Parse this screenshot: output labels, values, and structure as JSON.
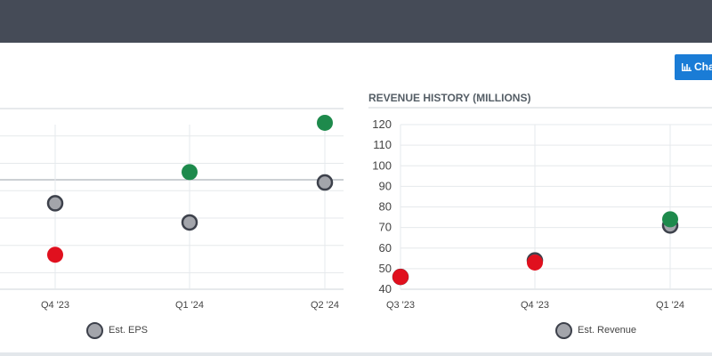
{
  "button": {
    "label": "Cha"
  },
  "charts": {
    "revenue": {
      "title": "REVENUE HISTORY (MILLIONS)"
    }
  },
  "colors": {
    "header_bg": "#454b57",
    "button_bg": "#1a7cd6",
    "beat": "#1e8a4c",
    "miss": "#e0101e",
    "estimate_fill": "#a3a5ab",
    "estimate_stroke": "#3d414b"
  },
  "chart_data": [
    {
      "type": "scatter",
      "title": "",
      "categories": [
        "Q4 '23",
        "Q1 '24",
        "Q2 '24"
      ],
      "series": [
        {
          "name": "Est. EPS",
          "values": [
            2.57,
            2.22,
            2.95
          ]
        },
        {
          "name": "",
          "values": [
            1.63,
            3.14,
            4.04
          ]
        }
      ],
      "point_colors": [
        "miss",
        "beat",
        "beat"
      ],
      "ylim": [
        1.0,
        4.3
      ],
      "grid": true,
      "legend": "bottom"
    },
    {
      "type": "scatter",
      "title": "REVENUE HISTORY (MILLIONS)",
      "categories": [
        "Q3 '23",
        "Q4 '23",
        "Q1 '24"
      ],
      "series": [
        {
          "name": "Est. Revenue",
          "values": [
            46,
            54,
            71
          ]
        },
        {
          "name": "",
          "values": [
            46,
            53,
            74
          ]
        }
      ],
      "point_colors": [
        "miss",
        "miss",
        "beat"
      ],
      "yticks": [
        40,
        50,
        60,
        70,
        80,
        90,
        100,
        110,
        120
      ],
      "ylim": [
        40,
        120
      ],
      "grid": true,
      "legend": "bottom"
    }
  ]
}
